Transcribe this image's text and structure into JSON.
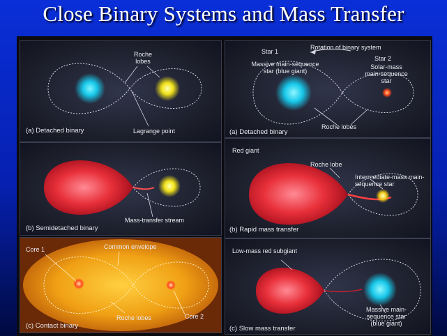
{
  "slide": {
    "title": "Close Binary Systems and Mass Transfer"
  },
  "left_panels": {
    "a": {
      "roche_lobes": "Roche lobes",
      "caption": "(a) Detached binary",
      "lagrange": "Lagrange point"
    },
    "b": {
      "stream": "Mass-transfer stream",
      "caption": "(b) Semidetached binary"
    },
    "c": {
      "core1": "Core 1",
      "envelope": "Common envelope",
      "roche_lobes": "Roche lobes",
      "core2": "Core 2",
      "caption": "(c) Contact binary"
    }
  },
  "right_panels": {
    "a": {
      "star1": "Star 1",
      "rotation": "Rotation of binary system",
      "star2": "Star 2",
      "massive": "Massive main-sequence star (blue giant)",
      "solar": "Solar-mass main-sequence star",
      "roche_lobes": "Roche lobes",
      "caption": "(a) Detached binary"
    },
    "b": {
      "red_giant": "Red giant",
      "roche_lobe": "Roche lobe",
      "intermediate": "Intermediate-mass main-sequence star",
      "caption": "(b) Rapid mass transfer"
    },
    "c": {
      "subgiant": "Low-mass red subgiant",
      "massive": "Massive main-sequence star (blue giant)",
      "caption": "(c) Slow mass transfer"
    }
  },
  "colors": {
    "blue_star": "#17c8ea",
    "yellow_star": "#f2e21a",
    "red_giant": "#e8303a",
    "envelope": "#f0a014"
  }
}
